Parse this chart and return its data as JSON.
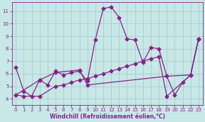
{
  "xlabel": "Windchill (Refroidissement éolien,°C)",
  "xlim": [
    -0.5,
    23.5
  ],
  "ylim": [
    3.5,
    11.7
  ],
  "yticks": [
    4,
    5,
    6,
    7,
    8,
    9,
    10,
    11
  ],
  "xticks": [
    0,
    1,
    2,
    3,
    4,
    5,
    6,
    7,
    8,
    9,
    10,
    11,
    12,
    13,
    14,
    15,
    16,
    17,
    18,
    19,
    20,
    21,
    22,
    23
  ],
  "background_color": "#c8e8e8",
  "grid_color": "#aacccc",
  "line_color": "#882288",
  "series1_x": [
    0,
    1,
    2,
    3,
    4,
    5,
    6,
    7,
    8,
    9,
    10,
    11,
    12,
    13,
    14,
    15,
    16,
    17,
    18,
    19,
    20,
    21,
    22,
    23
  ],
  "series1_y": [
    6.5,
    4.6,
    4.2,
    5.5,
    5.1,
    6.2,
    5.9,
    6.1,
    6.2,
    5.4,
    8.7,
    11.2,
    11.35,
    10.5,
    8.8,
    8.7,
    6.9,
    8.1,
    8.0,
    5.8,
    4.3,
    5.3,
    5.9,
    8.8
  ],
  "series2_x": [
    0,
    1,
    3,
    5,
    6,
    7,
    8,
    9,
    10,
    11,
    12,
    13,
    14,
    15,
    16,
    17,
    18,
    19,
    22,
    23
  ],
  "series2_y": [
    4.3,
    4.2,
    4.2,
    5.0,
    5.1,
    5.3,
    5.5,
    5.6,
    5.8,
    6.0,
    6.2,
    6.4,
    6.6,
    6.8,
    7.0,
    7.2,
    7.35,
    4.2,
    5.9,
    8.8
  ],
  "series3_x": [
    0,
    3,
    5,
    8,
    9,
    19,
    22,
    23
  ],
  "series3_y": [
    4.3,
    5.5,
    6.1,
    6.3,
    5.1,
    5.8,
    5.9,
    8.8
  ],
  "marker_size": 2.5,
  "line_width": 0.9
}
